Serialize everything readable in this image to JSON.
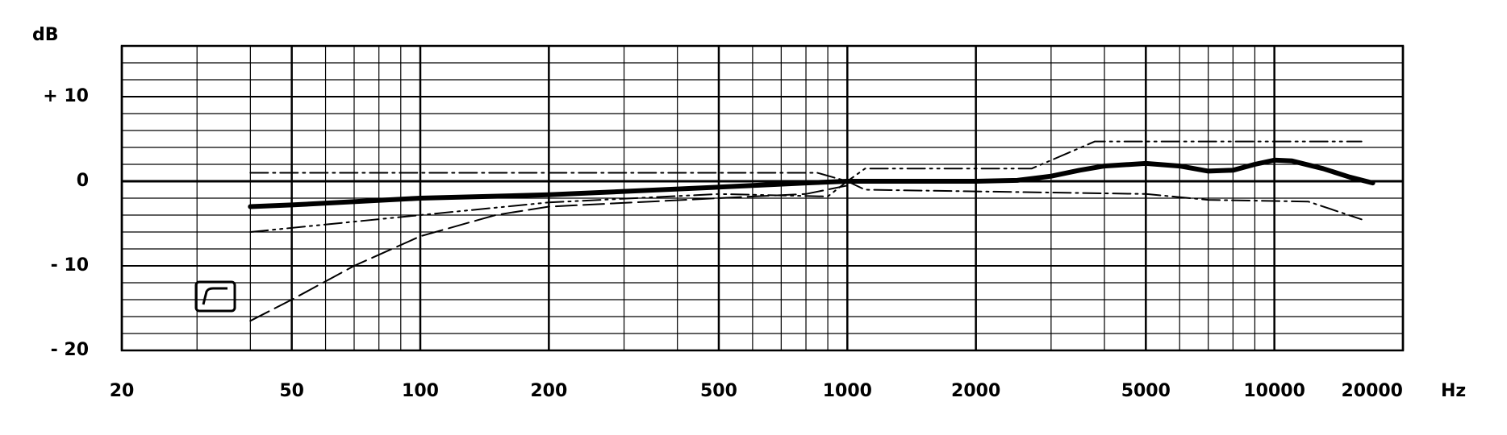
{
  "chart_data": {
    "type": "line",
    "y_label": "dB",
    "x_label": "Hz",
    "xscale": "log",
    "xlim": [
      20,
      20000
    ],
    "ylim": [
      -20,
      16
    ],
    "xticks": [
      20,
      50,
      100,
      200,
      500,
      1000,
      2000,
      5000,
      10000,
      20000
    ],
    "yticks": [
      {
        "value": 10,
        "label": "+ 10"
      },
      0,
      {
        "value": -10,
        "label": "- 10"
      },
      {
        "value": -20,
        "label": "- 20"
      }
    ],
    "xminor": [
      30,
      40,
      60,
      70,
      80,
      90,
      300,
      400,
      600,
      700,
      800,
      900,
      3000,
      4000,
      6000,
      7000,
      8000,
      9000
    ],
    "yminor": [
      -18,
      -16,
      -14,
      -12,
      -8,
      -6,
      -4,
      -2,
      2,
      4,
      6,
      8,
      12,
      14
    ],
    "grid": true,
    "series": [
      {
        "color": "#000000",
        "style": "solid-thick",
        "x": [
          40,
          50,
          100,
          200,
          500,
          800,
          1000,
          2000,
          2500,
          3000,
          3500,
          4000,
          5000,
          6000,
          7000,
          8000,
          9000,
          10000,
          11000,
          13000,
          15000,
          17000
        ],
        "values": [
          -3,
          -2.8,
          -2,
          -1.6,
          -0.7,
          -0.2,
          0,
          0,
          0.1,
          0.6,
          1.3,
          1.8,
          2.1,
          1.8,
          1.2,
          1.3,
          2,
          2.5,
          2.4,
          1.5,
          0.5,
          -0.2
        ]
      },
      {
        "color": "#000000",
        "style": "dashed",
        "x": [
          40,
          50,
          70,
          100,
          150,
          200,
          500,
          800,
          1000
        ],
        "values": [
          -16.5,
          -14,
          -10,
          -6.5,
          -4,
          -3,
          -2,
          -1.5,
          -0.5
        ]
      },
      {
        "color": "#000000",
        "style": "dash-dot",
        "x": [
          40,
          100,
          500,
          850,
          1000,
          1100,
          2000,
          5000,
          7000,
          12000,
          16000
        ],
        "values": [
          1,
          1,
          1,
          1,
          0,
          -1,
          -1.2,
          -1.5,
          -2.2,
          -2.4,
          -4.5
        ]
      },
      {
        "color": "#000000",
        "style": "dash-dot-dot",
        "x": [
          40,
          100,
          200,
          500,
          900,
          1000,
          1100,
          2700,
          3800,
          16000
        ],
        "values": [
          -6,
          -4,
          -2.5,
          -1.5,
          -1.8,
          0,
          1.5,
          1.5,
          4.7,
          4.7
        ]
      }
    ]
  }
}
